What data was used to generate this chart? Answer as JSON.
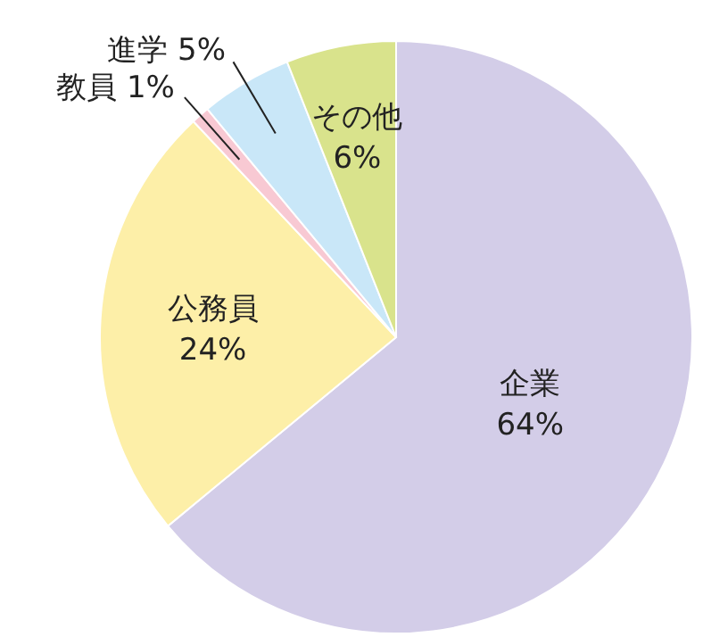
{
  "chart_data": {
    "type": "pie",
    "categories": [
      "企業",
      "公務員",
      "教員",
      "進学",
      "その他"
    ],
    "values": [
      64,
      24,
      1,
      5,
      6
    ],
    "colors": [
      "#d3cde8",
      "#fdefa8",
      "#f8c9d3",
      "#c9e7f8",
      "#d9e38c"
    ],
    "value_labels": [
      "64%",
      "24%",
      "1%",
      "5%",
      "6%"
    ]
  }
}
